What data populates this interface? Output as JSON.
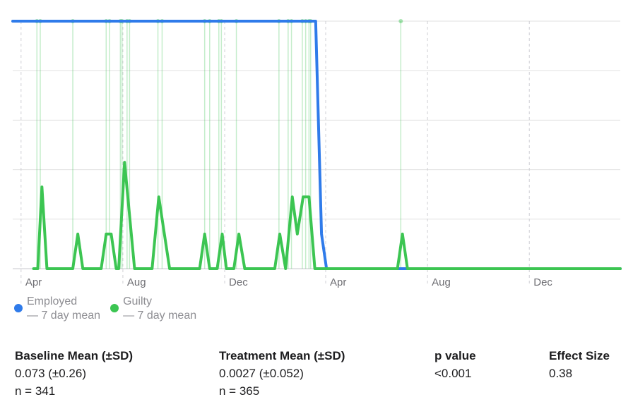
{
  "chart_data": {
    "type": "line",
    "xlim": [
      -10,
      718
    ],
    "ylim": [
      0,
      1
    ],
    "xticks": [
      {
        "value": 0,
        "label": "Apr"
      },
      {
        "value": 122,
        "label": "Aug"
      },
      {
        "value": 244,
        "label": "Dec"
      },
      {
        "value": 365,
        "label": "Apr"
      },
      {
        "value": 487,
        "label": "Aug"
      },
      {
        "value": 609,
        "label": "Dec"
      }
    ],
    "yticks": [
      0,
      0.2,
      0.4,
      0.6,
      0.8,
      1
    ],
    "grid": true,
    "series": [
      {
        "name": "Employed\n— 7 day mean",
        "color": "#2f7bea",
        "x": [
          -10,
          353,
          360,
          366,
          718
        ],
        "values": [
          1,
          1,
          0.14,
          0,
          0
        ]
      },
      {
        "name": "Guilty\n— 7 day mean",
        "color": "#3cc552",
        "x": [
          15,
          20,
          25,
          31,
          62,
          68,
          74,
          96,
          102,
          108,
          114,
          117,
          124,
          136,
          157,
          165,
          178,
          214,
          220,
          226,
          235,
          241,
          246,
          255,
          261,
          268,
          304,
          310,
          317,
          325,
          331,
          338,
          345,
          352,
          451,
          457,
          463,
          718
        ],
        "values": [
          0,
          0,
          0.33,
          0,
          0,
          0.14,
          0,
          0,
          0.14,
          0.14,
          0,
          0,
          0.43,
          0,
          0,
          0.29,
          0,
          0,
          0.14,
          0,
          0,
          0.14,
          0,
          0,
          0.14,
          0,
          0,
          0.14,
          0,
          0.29,
          0.14,
          0.29,
          0.29,
          0,
          0,
          0.14,
          0,
          0
        ]
      }
    ],
    "events": {
      "color": "#3cc552",
      "x": [
        19,
        23,
        62,
        102,
        106,
        119,
        121,
        127,
        130,
        164,
        169,
        220,
        226,
        237,
        240,
        258,
        309,
        320,
        324,
        337,
        341,
        345,
        347,
        455
      ],
      "values": [
        1,
        1,
        1,
        1,
        1,
        1,
        1,
        1,
        1,
        1,
        1,
        1,
        1,
        1,
        1,
        1,
        1,
        1,
        1,
        1,
        1,
        1,
        1,
        1
      ]
    }
  },
  "stats": [
    {
      "header": "Baseline Mean (±SD)",
      "lines": [
        "0.073 (±0.26)",
        "n = 341"
      ]
    },
    {
      "header": "Treatment Mean (±SD)",
      "lines": [
        "0.0027 (±0.052)",
        "n = 365"
      ]
    },
    {
      "header": "p value",
      "lines": [
        "<0.001"
      ]
    },
    {
      "header": "Effect Size",
      "lines": [
        "0.38"
      ]
    }
  ]
}
